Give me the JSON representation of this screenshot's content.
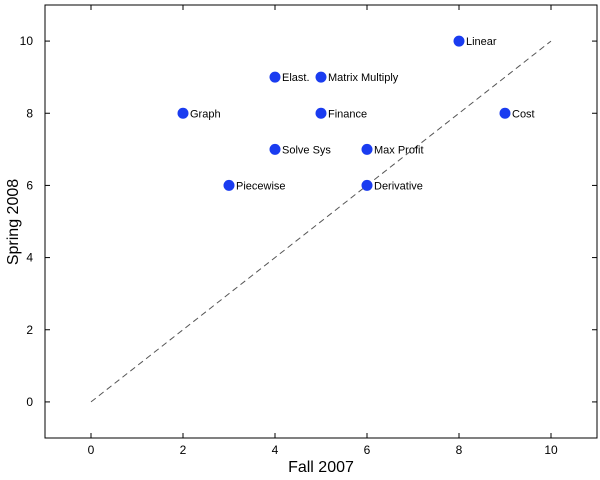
{
  "chart_data": {
    "type": "scatter",
    "title": "",
    "xlabel": "Fall 2007",
    "ylabel": "Spring 2008",
    "xlim": [
      -1,
      11
    ],
    "ylim": [
      -1,
      11
    ],
    "xticks": [
      0,
      2,
      4,
      6,
      8,
      10
    ],
    "yticks": [
      0,
      2,
      4,
      6,
      8,
      10
    ],
    "grid": false,
    "point_color": "#1a3cf0",
    "reference_line": {
      "style": "dashed",
      "from": [
        0,
        0
      ],
      "to": [
        10,
        10
      ],
      "color": "#555555"
    },
    "points": [
      {
        "label": "Graph",
        "x": 2,
        "y": 8
      },
      {
        "label": "Piecewise",
        "x": 3,
        "y": 6
      },
      {
        "label": "Elast.",
        "x": 4,
        "y": 9
      },
      {
        "label": "Solve Sys",
        "x": 4,
        "y": 7
      },
      {
        "label": "Matrix Multiply",
        "x": 5,
        "y": 9
      },
      {
        "label": "Finance",
        "x": 5,
        "y": 8
      },
      {
        "label": "Max Profit",
        "x": 6,
        "y": 7
      },
      {
        "label": "Derivative",
        "x": 6,
        "y": 6
      },
      {
        "label": "Linear",
        "x": 8,
        "y": 10
      },
      {
        "label": "Cost",
        "x": 9,
        "y": 8
      }
    ]
  }
}
